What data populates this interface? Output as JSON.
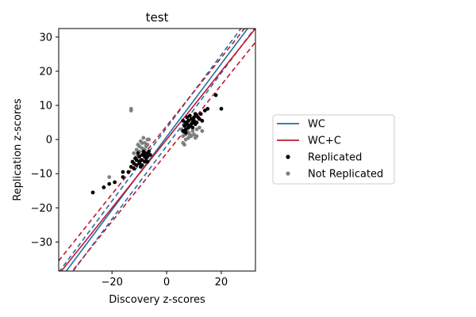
{
  "chart_data": {
    "type": "scatter",
    "title": "test",
    "xlabel": "Discovery z-scores",
    "ylabel": "Replication z-scores",
    "xlim": [
      -39.5,
      32.5
    ],
    "ylim": [
      -38.5,
      32.5
    ],
    "xticks": [
      -20,
      0,
      20
    ],
    "yticks": [
      -30,
      -20,
      -10,
      0,
      10,
      20,
      30
    ],
    "grid": false,
    "legend_position": "right",
    "lines": [
      {
        "name": "WC",
        "color": "#1f6fa8",
        "style": "solid",
        "slope": 1.07,
        "intercept": 0.8
      },
      {
        "name": "WC",
        "color": "#1f6fa8",
        "style": "dashed",
        "slope": 1.07,
        "intercept": -1.9
      },
      {
        "name": "WC",
        "color": "#1f6fa8",
        "style": "dashed",
        "slope": 1.07,
        "intercept": 3.4
      },
      {
        "name": "WC+C",
        "color": "#c2182b",
        "style": "solid",
        "slope": 1.0,
        "intercept": 0.0
      },
      {
        "name": "WC+C",
        "color": "#c2182b",
        "style": "dashed",
        "slope": 1.0,
        "intercept": -4.0
      },
      {
        "name": "WC+C",
        "color": "#c2182b",
        "style": "dashed",
        "slope": 1.0,
        "intercept": 4.0
      }
    ],
    "series": [
      {
        "name": "Replicated",
        "color": "#000000",
        "points": [
          [
            -27,
            -15.5
          ],
          [
            -23,
            -14
          ],
          [
            -21,
            -13
          ],
          [
            -19,
            -12.5
          ],
          [
            -16,
            -11
          ],
          [
            -16,
            -9.5
          ],
          [
            -14,
            -9.5
          ],
          [
            -13,
            -8
          ],
          [
            -12,
            -7
          ],
          [
            -12,
            -8.5
          ],
          [
            -11,
            -6
          ],
          [
            -11,
            -7.5
          ],
          [
            -10,
            -6.5
          ],
          [
            -10,
            -5
          ],
          [
            -10,
            -7
          ],
          [
            -9,
            -4.5
          ],
          [
            -9,
            -6
          ],
          [
            -9,
            -7.5
          ],
          [
            -8,
            -5
          ],
          [
            -8,
            -4
          ],
          [
            -8,
            -6.5
          ],
          [
            -7.5,
            -5.5
          ],
          [
            -7,
            -4
          ],
          [
            -7,
            -5
          ],
          [
            -6.5,
            -3.5
          ],
          [
            -6,
            -4.5
          ],
          [
            -11.5,
            -5.5
          ],
          [
            -12.5,
            -6.5
          ],
          [
            -10.5,
            -4
          ],
          [
            -9.5,
            -8
          ],
          [
            -8.5,
            -3.5
          ],
          [
            -7,
            -6.5
          ],
          [
            6,
            2.5
          ],
          [
            6.5,
            4
          ],
          [
            7,
            3
          ],
          [
            7,
            5
          ],
          [
            7.5,
            4.5
          ],
          [
            8,
            3.5
          ],
          [
            8,
            5.5
          ],
          [
            8.5,
            4
          ],
          [
            9,
            6
          ],
          [
            9,
            4.5
          ],
          [
            9.5,
            5
          ],
          [
            10,
            6.5
          ],
          [
            10,
            5.5
          ],
          [
            10.5,
            4.5
          ],
          [
            11,
            7
          ],
          [
            11,
            5
          ],
          [
            12,
            6
          ],
          [
            12.5,
            7.5
          ],
          [
            13,
            5.5
          ],
          [
            14,
            8.5
          ],
          [
            15,
            9
          ],
          [
            18,
            13
          ],
          [
            20,
            9
          ],
          [
            7.5,
            6.5
          ],
          [
            6,
            5.5
          ],
          [
            8.5,
            7
          ],
          [
            9.5,
            3.5
          ],
          [
            11.5,
            6.5
          ],
          [
            10.5,
            7.5
          ],
          [
            7,
            2
          ]
        ]
      },
      {
        "name": "Not Replicated",
        "color": "#7f7f7f",
        "points": [
          [
            -21,
            -11
          ],
          [
            -12,
            -4
          ],
          [
            -11,
            -3
          ],
          [
            -10,
            -2
          ],
          [
            -9,
            -1
          ],
          [
            -8,
            -1
          ],
          [
            -7,
            0
          ],
          [
            -7,
            -1.5
          ],
          [
            -8,
            -3
          ],
          [
            -9,
            -2.5
          ],
          [
            -10,
            -3.5
          ],
          [
            -11,
            -5
          ],
          [
            -10.5,
            -1.5
          ],
          [
            -9.5,
            -0.5
          ],
          [
            -8.5,
            0.5
          ],
          [
            -6.5,
            0
          ],
          [
            -7.5,
            -2
          ],
          [
            -13,
            8.5
          ],
          [
            -13,
            9
          ],
          [
            5.5,
            3
          ],
          [
            6,
            1
          ],
          [
            6,
            -1
          ],
          [
            6.5,
            -1.5
          ],
          [
            6.5,
            2
          ],
          [
            7,
            1.5
          ],
          [
            7,
            0
          ],
          [
            7.5,
            3
          ],
          [
            8,
            2
          ],
          [
            8.5,
            1.5
          ],
          [
            9,
            1
          ],
          [
            9.5,
            2.5
          ],
          [
            10,
            1.5
          ],
          [
            11,
            3
          ],
          [
            12,
            3.5
          ],
          [
            11,
            1
          ],
          [
            13,
            2.5
          ],
          [
            10.5,
            0.5
          ],
          [
            8,
            0.5
          ],
          [
            7,
            4
          ]
        ]
      }
    ],
    "legend_entries": [
      {
        "label": "WC",
        "kind": "line",
        "color": "#1f6fa8"
      },
      {
        "label": "WC+C",
        "kind": "line",
        "color": "#c2182b"
      },
      {
        "label": "Replicated",
        "kind": "marker",
        "color": "#000000"
      },
      {
        "label": "Not Replicated",
        "kind": "marker",
        "color": "#7f7f7f"
      }
    ]
  }
}
